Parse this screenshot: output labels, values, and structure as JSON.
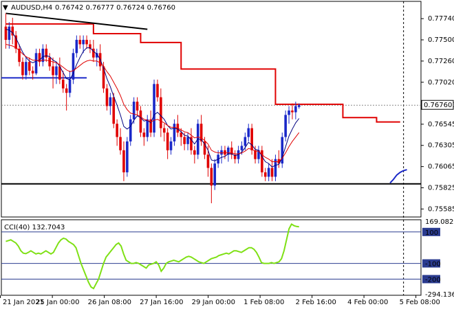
{
  "chart_data": [
    {
      "type": "candlestick",
      "symbol_label": "AUDUSD,H4",
      "ohlc_label": [
        "0.76742",
        "0.76777",
        "0.76724",
        "0.76760"
      ],
      "ylim": [
        0.7551,
        0.7792
      ],
      "y_ticks": [
        "0.77740",
        "0.77500",
        "0.77260",
        "0.77020",
        "0.76760",
        "0.76545",
        "0.76305",
        "0.76065",
        "0.75825",
        "0.75585"
      ],
      "current_price_label": "0.76760",
      "current_price": 0.7676,
      "x_tick_labels": [
        "21 Jan 2021",
        "25 Jan 00:00",
        "26 Jan 08:00",
        "27 Jan 16:00",
        "29 Jan 00:00",
        "1 Feb 08:00",
        "2 Feb 16:00",
        "4 Feb 00:00",
        "5 Feb 08:00"
      ],
      "x_tick_bars": [
        0,
        15,
        30,
        45,
        60,
        75,
        90,
        105,
        120
      ],
      "up_color": "#1a28c8",
      "down_color": "#e00000",
      "candles": [
        [
          0.7765,
          0.778,
          0.774,
          0.775
        ],
        [
          0.775,
          0.777,
          0.774,
          0.7765
        ],
        [
          0.7765,
          0.7775,
          0.7745,
          0.7755
        ],
        [
          0.7755,
          0.776,
          0.7735,
          0.774
        ],
        [
          0.774,
          0.7745,
          0.772,
          0.7725
        ],
        [
          0.7725,
          0.773,
          0.7705,
          0.771
        ],
        [
          0.771,
          0.773,
          0.7705,
          0.7725
        ],
        [
          0.7725,
          0.773,
          0.771,
          0.7715
        ],
        [
          0.7715,
          0.772,
          0.7705,
          0.7712
        ],
        [
          0.7712,
          0.774,
          0.771,
          0.7735
        ],
        [
          0.7735,
          0.774,
          0.772,
          0.7725
        ],
        [
          0.7725,
          0.7745,
          0.772,
          0.774
        ],
        [
          0.774,
          0.7745,
          0.7725,
          0.773
        ],
        [
          0.773,
          0.7735,
          0.7715,
          0.772
        ],
        [
          0.772,
          0.773,
          0.7695,
          0.771
        ],
        [
          0.771,
          0.7725,
          0.77,
          0.772
        ],
        [
          0.772,
          0.773,
          0.77,
          0.7705
        ],
        [
          0.7705,
          0.7715,
          0.769,
          0.7695
        ],
        [
          0.7695,
          0.77,
          0.767,
          0.769
        ],
        [
          0.769,
          0.7715,
          0.7685,
          0.7705
        ],
        [
          0.7705,
          0.774,
          0.77,
          0.7735
        ],
        [
          0.7735,
          0.7755,
          0.773,
          0.775
        ],
        [
          0.775,
          0.7755,
          0.774,
          0.7745
        ],
        [
          0.7745,
          0.7755,
          0.7735,
          0.775
        ],
        [
          0.775,
          0.7755,
          0.774,
          0.7745
        ],
        [
          0.7745,
          0.775,
          0.7735,
          0.774
        ],
        [
          0.774,
          0.775,
          0.7725,
          0.773
        ],
        [
          0.773,
          0.774,
          0.772,
          0.7735
        ],
        [
          0.7735,
          0.7745,
          0.7715,
          0.772
        ],
        [
          0.772,
          0.7725,
          0.769,
          0.7695
        ],
        [
          0.7695,
          0.77,
          0.767,
          0.7675
        ],
        [
          0.7675,
          0.769,
          0.7665,
          0.7685
        ],
        [
          0.7685,
          0.769,
          0.765,
          0.7655
        ],
        [
          0.7655,
          0.766,
          0.763,
          0.764
        ],
        [
          0.764,
          0.765,
          0.762,
          0.7625
        ],
        [
          0.7625,
          0.7635,
          0.759,
          0.76
        ],
        [
          0.76,
          0.764,
          0.7595,
          0.7635
        ],
        [
          0.7635,
          0.7665,
          0.763,
          0.766
        ],
        [
          0.766,
          0.7685,
          0.7655,
          0.768
        ],
        [
          0.768,
          0.7685,
          0.7665,
          0.767
        ],
        [
          0.767,
          0.7675,
          0.764,
          0.7645
        ],
        [
          0.7645,
          0.765,
          0.763,
          0.764
        ],
        [
          0.764,
          0.7665,
          0.7635,
          0.766
        ],
        [
          0.766,
          0.767,
          0.764,
          0.7645
        ],
        [
          0.7645,
          0.7705,
          0.764,
          0.77
        ],
        [
          0.77,
          0.7705,
          0.768,
          0.7685
        ],
        [
          0.7685,
          0.7695,
          0.764,
          0.765
        ],
        [
          0.765,
          0.7655,
          0.7635,
          0.7645
        ],
        [
          0.7645,
          0.765,
          0.7615,
          0.7625
        ],
        [
          0.7625,
          0.764,
          0.762,
          0.7635
        ],
        [
          0.7635,
          0.766,
          0.763,
          0.7655
        ],
        [
          0.7655,
          0.7665,
          0.764,
          0.7645
        ],
        [
          0.7645,
          0.765,
          0.763,
          0.764
        ],
        [
          0.764,
          0.7645,
          0.7625,
          0.7632
        ],
        [
          0.7632,
          0.7645,
          0.7625,
          0.764
        ],
        [
          0.764,
          0.765,
          0.762,
          0.7625
        ],
        [
          0.7625,
          0.763,
          0.761,
          0.762
        ],
        [
          0.762,
          0.766,
          0.7615,
          0.7655
        ],
        [
          0.7655,
          0.7665,
          0.763,
          0.7635
        ],
        [
          0.7635,
          0.764,
          0.7615,
          0.762
        ],
        [
          0.762,
          0.763,
          0.7595,
          0.7605
        ],
        [
          0.7605,
          0.761,
          0.7565,
          0.7585
        ],
        [
          0.7585,
          0.7615,
          0.758,
          0.761
        ],
        [
          0.761,
          0.7625,
          0.7605,
          0.762
        ],
        [
          0.762,
          0.763,
          0.761,
          0.7625
        ],
        [
          0.7625,
          0.763,
          0.7615,
          0.762
        ],
        [
          0.762,
          0.763,
          0.7612,
          0.7628
        ],
        [
          0.7628,
          0.7635,
          0.7615,
          0.762
        ],
        [
          0.762,
          0.7625,
          0.761,
          0.7615
        ],
        [
          0.7615,
          0.763,
          0.761,
          0.7625
        ],
        [
          0.7625,
          0.7635,
          0.762,
          0.763
        ],
        [
          0.763,
          0.7645,
          0.7625,
          0.764
        ],
        [
          0.764,
          0.7655,
          0.7635,
          0.765
        ],
        [
          0.765,
          0.7655,
          0.762,
          0.7625
        ],
        [
          0.7625,
          0.763,
          0.761,
          0.7615
        ],
        [
          0.7615,
          0.763,
          0.761,
          0.7625
        ],
        [
          0.7625,
          0.763,
          0.7595,
          0.76
        ],
        [
          0.76,
          0.7605,
          0.759,
          0.7595
        ],
        [
          0.7595,
          0.761,
          0.759,
          0.7605
        ],
        [
          0.7605,
          0.7615,
          0.759,
          0.7595
        ],
        [
          0.7595,
          0.762,
          0.759,
          0.7615
        ],
        [
          0.7615,
          0.7625,
          0.7605,
          0.761
        ],
        [
          0.761,
          0.7645,
          0.7605,
          0.764
        ],
        [
          0.764,
          0.767,
          0.7635,
          0.7665
        ],
        [
          0.7665,
          0.7675,
          0.7655,
          0.767
        ],
        [
          0.767,
          0.7678,
          0.766,
          0.7668
        ],
        [
          0.7668,
          0.768,
          0.766,
          0.7675
        ],
        [
          0.7674,
          0.7678,
          0.7672,
          0.7676
        ]
      ],
      "ma_fast": [
        0.7762,
        0.7761,
        0.7758,
        0.7752,
        0.7744,
        0.7736,
        0.773,
        0.7726,
        0.7724,
        0.7726,
        0.7727,
        0.7731,
        0.7732,
        0.7731,
        0.7727,
        0.7725,
        0.772,
        0.7713,
        0.7706,
        0.7705,
        0.7712,
        0.7722,
        0.773,
        0.7737,
        0.7741,
        0.7741,
        0.7737,
        0.7734,
        0.7728,
        0.7718,
        0.7706,
        0.7697,
        0.7686,
        0.7676,
        0.7665,
        0.7652,
        0.7649,
        0.7652,
        0.7659,
        0.7664,
        0.7662,
        0.7658,
        0.7659,
        0.7656,
        0.7665,
        0.7668,
        0.7664,
        0.766,
        0.7653,
        0.7649,
        0.765,
        0.7649,
        0.7646,
        0.7642,
        0.7641,
        0.7637,
        0.7632,
        0.7638,
        0.7637,
        0.7632,
        0.7625,
        0.7614,
        0.7613,
        0.7615,
        0.7617,
        0.7618,
        0.7621,
        0.7621,
        0.7619,
        0.762,
        0.7623,
        0.7628,
        0.7634,
        0.7631,
        0.7626,
        0.7625,
        0.7618,
        0.7612,
        0.761,
        0.7606,
        0.7608,
        0.7609,
        0.7617,
        0.7629,
        0.7641,
        0.7649,
        0.7656,
        0.7661
      ],
      "ma_slow": [
        0.7745,
        0.7744,
        0.7743,
        0.7741,
        0.7738,
        0.7734,
        0.7731,
        0.7729,
        0.7727,
        0.7727,
        0.7726,
        0.7727,
        0.7727,
        0.7726,
        0.7725,
        0.7724,
        0.7722,
        0.7719,
        0.7716,
        0.7714,
        0.7715,
        0.7718,
        0.7721,
        0.7724,
        0.7726,
        0.7727,
        0.7726,
        0.7726,
        0.7724,
        0.772,
        0.7714,
        0.7709,
        0.7702,
        0.7695,
        0.7687,
        0.7677,
        0.7671,
        0.7667,
        0.7666,
        0.7665,
        0.7663,
        0.766,
        0.7659,
        0.7657,
        0.7659,
        0.766,
        0.7658,
        0.7656,
        0.7653,
        0.7651,
        0.7651,
        0.765,
        0.7648,
        0.7646,
        0.7645,
        0.7642,
        0.7639,
        0.764,
        0.7639,
        0.7636,
        0.7632,
        0.7625,
        0.7623,
        0.7622,
        0.7622,
        0.7622,
        0.7622,
        0.7622,
        0.7621,
        0.7621,
        0.7622,
        0.7624,
        0.7627,
        0.7626,
        0.7624,
        0.7624,
        0.762,
        0.7617,
        0.7615,
        0.7612,
        0.7612,
        0.7612,
        0.7616,
        0.7622,
        0.7629,
        0.7635,
        0.764,
        0.7645
      ],
      "ma_partial_start": 114,
      "ma_partial": [
        0.7588,
        0.7592,
        0.7597,
        0.76,
        0.7602,
        0.7603
      ],
      "resistance_step": [
        [
          0,
          0.7768
        ],
        [
          26,
          0.7768
        ],
        [
          26,
          0.7757
        ],
        [
          40,
          0.7757
        ],
        [
          40,
          0.7747
        ],
        [
          52,
          0.7747
        ],
        [
          52,
          0.7717
        ],
        [
          80,
          0.7717
        ],
        [
          80,
          0.7677
        ],
        [
          100,
          0.7677
        ],
        [
          100,
          0.7662
        ],
        [
          110,
          0.7662
        ],
        [
          110,
          0.7657
        ],
        [
          117,
          0.7657
        ]
      ],
      "blue_support_level": 0.7707,
      "blue_support_end_bar": 24,
      "black_support_level": 0.7587,
      "trendline": [
        [
          0,
          0.778
        ],
        [
          42,
          0.7762
        ]
      ],
      "vertical_marker_bars": [
        118
      ]
    },
    {
      "type": "line",
      "indicator_label": "CCI(40) 132.7043",
      "ylim": [
        -294.1362,
        169.082
      ],
      "y_tick_labels": [
        "169.082",
        "100",
        "-100",
        "-200",
        "-294.1362"
      ],
      "y_tick_values": [
        169.082,
        100,
        -100,
        -200,
        -294.1362
      ],
      "level_lines": [
        100,
        -100,
        -200
      ],
      "line_color": "#7ee014",
      "values": [
        40,
        45,
        50,
        40,
        30,
        10,
        -20,
        -35,
        -38,
        -30,
        -20,
        -30,
        -40,
        -35,
        -40,
        -30,
        -20,
        -30,
        -40,
        -30,
        0,
        30,
        50,
        60,
        55,
        40,
        30,
        20,
        0,
        -50,
        -100,
        -140,
        -180,
        -220,
        -250,
        -260,
        -230,
        -200,
        -150,
        -100,
        -60,
        -40,
        -20,
        0,
        20,
        30,
        10,
        -40,
        -80,
        -90,
        -100,
        -100,
        -95,
        -100,
        -110,
        -120,
        -130,
        -110,
        -105,
        -100,
        -90,
        -110,
        -150,
        -130,
        -100,
        -90,
        -85,
        -80,
        -85,
        -90,
        -80,
        -70,
        -60,
        -55,
        -60,
        -70,
        -80,
        -90,
        -95,
        -100,
        -90,
        -80,
        -70,
        -65,
        -60,
        -50,
        -45,
        -40,
        -35,
        -40,
        -30,
        -20,
        -20,
        -25,
        -30,
        -20,
        -10,
        0,
        0,
        -10,
        -30,
        -60,
        -95,
        -100,
        -100,
        -100,
        -95,
        -100,
        -95,
        -90,
        -70,
        -20,
        50,
        120,
        150,
        140,
        135,
        133
      ],
      "partial_hint": false
    }
  ]
}
